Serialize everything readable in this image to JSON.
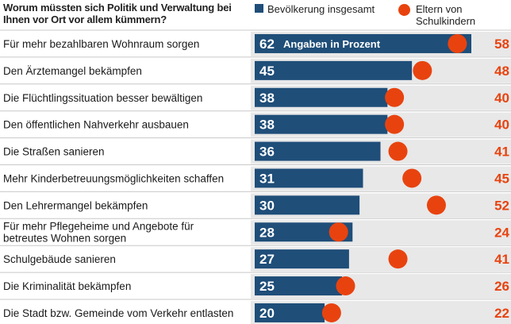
{
  "chart_data": {
    "type": "bar",
    "title": "Worum müssten sich Politik und Verwaltung bei Ihnen vor Ort vor allem kümmern?",
    "note": "Angaben in Prozent",
    "categories": [
      [
        "Für mehr bezahlbaren Wohnraum sorgen"
      ],
      [
        "Den Ärztemangel bekämpfen"
      ],
      [
        "Die Flüchtlingssituation besser bewältigen"
      ],
      [
        "Den öffentlichen Nahverkehr ausbauen"
      ],
      [
        "Die Straßen sanieren"
      ],
      [
        "Mehr Kinderbetreuungsmöglichkeiten schaffen"
      ],
      [
        "Den Lehrermangel bekämpfen"
      ],
      [
        "Für mehr Pflegeheime und Angebote für",
        "betreutes Wohnen sorgen"
      ],
      [
        "Schulgebäude sanieren"
      ],
      [
        "Die Kriminalität bekämpfen"
      ],
      [
        "Die Stadt bzw. Gemeinde vom Verkehr entlasten"
      ]
    ],
    "series": [
      {
        "name": "Bevölkerung insgesamt",
        "color": "#1f4e79",
        "values": [
          62,
          45,
          38,
          38,
          36,
          31,
          30,
          28,
          27,
          25,
          20
        ]
      },
      {
        "name": "Eltern von Schulkindern",
        "color": "#e8430f",
        "values": [
          58,
          48,
          40,
          40,
          41,
          45,
          52,
          24,
          41,
          26,
          22
        ]
      }
    ],
    "xlim": [
      0,
      62
    ],
    "xlabel": "",
    "ylabel": ""
  },
  "legend": {
    "population": "Bevölkerung insgesamt",
    "parents": "Eltern von Schulkindern"
  },
  "colors": {
    "bar": "#1f4e79",
    "dot": "#e8430f",
    "row_band": "#e8e8e8",
    "row_rule": "#ffffff"
  }
}
